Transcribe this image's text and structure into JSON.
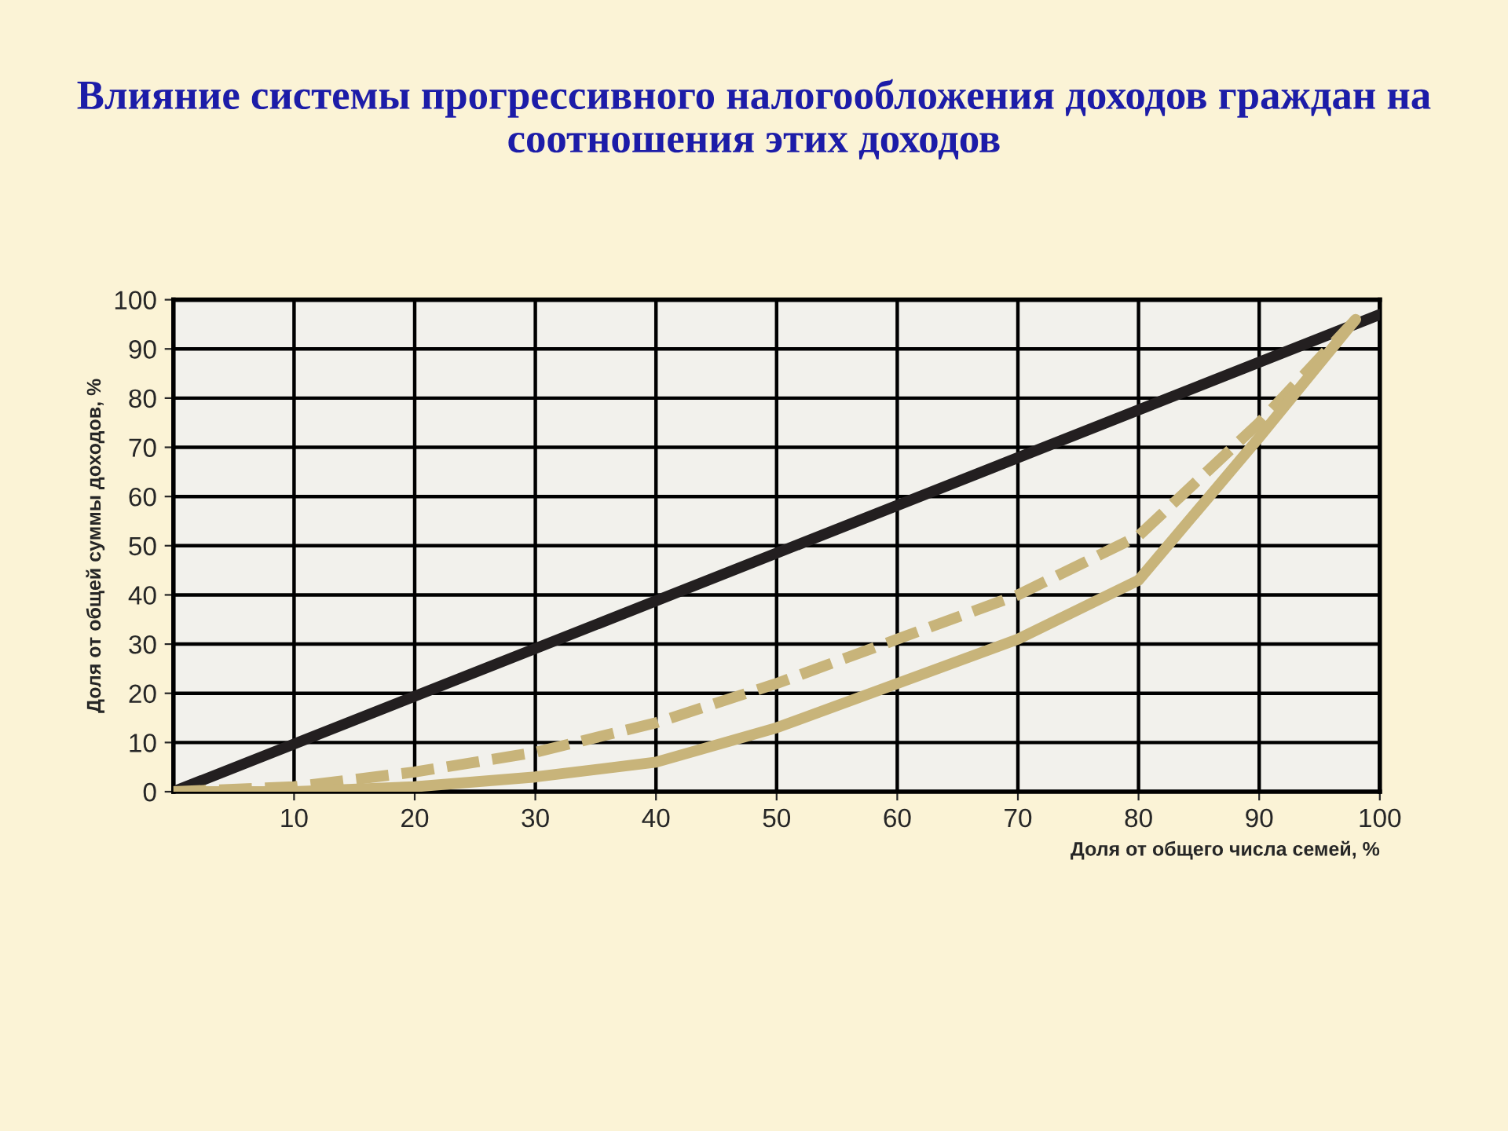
{
  "chart_data": {
    "type": "line",
    "title": "Влияние системы прогрессивного налогообложения доходов граждан на соотношения этих доходов",
    "xlabel": "Доля от общего числа семей, %",
    "ylabel": "Доля от общей суммы доходов, %",
    "xlim": [
      0,
      100
    ],
    "ylim": [
      0,
      100
    ],
    "xticks": [
      10,
      20,
      30,
      40,
      50,
      60,
      70,
      80,
      90,
      100
    ],
    "yticks": [
      0,
      10,
      20,
      30,
      40,
      50,
      60,
      70,
      80,
      90,
      100
    ],
    "grid": true,
    "legend": false,
    "series": [
      {
        "color": "#231f20",
        "line_style": "solid",
        "x": [
          0,
          100
        ],
        "values": [
          0,
          97
        ]
      },
      {
        "color": "#c8b47a",
        "line_style": "dashed",
        "x": [
          0,
          10,
          20,
          30,
          40,
          50,
          60,
          70,
          80,
          90,
          98
        ],
        "values": [
          0,
          1,
          4,
          8,
          14,
          22,
          31,
          40,
          52,
          75,
          96
        ]
      },
      {
        "color": "#c8b47a",
        "line_style": "solid",
        "x": [
          0,
          10,
          20,
          30,
          40,
          50,
          60,
          70,
          80,
          90,
          98
        ],
        "values": [
          0,
          0,
          1,
          3,
          6,
          13,
          22,
          31,
          43,
          72,
          96
        ]
      }
    ]
  }
}
